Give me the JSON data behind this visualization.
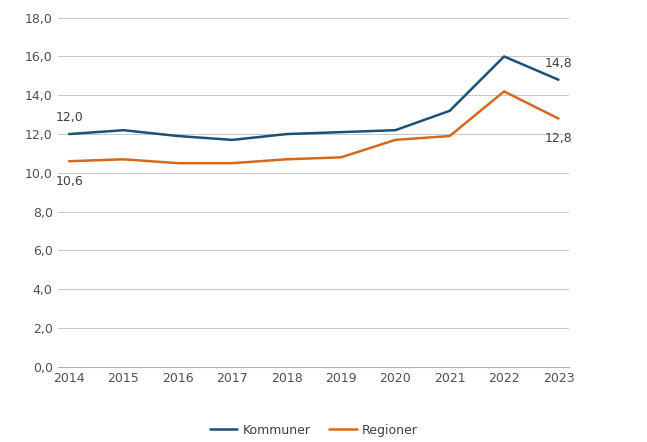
{
  "years": [
    2014,
    2015,
    2016,
    2017,
    2018,
    2019,
    2020,
    2021,
    2022,
    2023
  ],
  "kommuner": [
    12.0,
    12.2,
    11.9,
    11.7,
    12.0,
    12.1,
    12.2,
    13.2,
    16.0,
    14.8
  ],
  "regioner": [
    10.6,
    10.7,
    10.5,
    10.5,
    10.7,
    10.8,
    11.7,
    11.9,
    14.2,
    12.8
  ],
  "kommuner_color": "#1a5276",
  "regioner_color": "#d4691e",
  "annotation_color": "#404040",
  "kommuner_label": "Kommuner",
  "regioner_label": "Regioner",
  "kommuner_first_label": "12,0",
  "regioner_first_label": "10,6",
  "kommuner_last_label": "14,8",
  "regioner_last_label": "12,8",
  "ylim": [
    0,
    18
  ],
  "yticks": [
    0.0,
    2.0,
    4.0,
    6.0,
    8.0,
    10.0,
    12.0,
    14.0,
    16.0,
    18.0
  ],
  "ytick_labels": [
    "0,0",
    "2,0",
    "4,0",
    "6,0",
    "8,0",
    "10,0",
    "12,0",
    "14,0",
    "16,0",
    "18,0"
  ],
  "background_color": "#ffffff",
  "grid_color": "#c8c8c8",
  "line_width": 1.8,
  "font_size_ticks": 9,
  "font_size_annotations": 9,
  "font_size_legend": 9
}
